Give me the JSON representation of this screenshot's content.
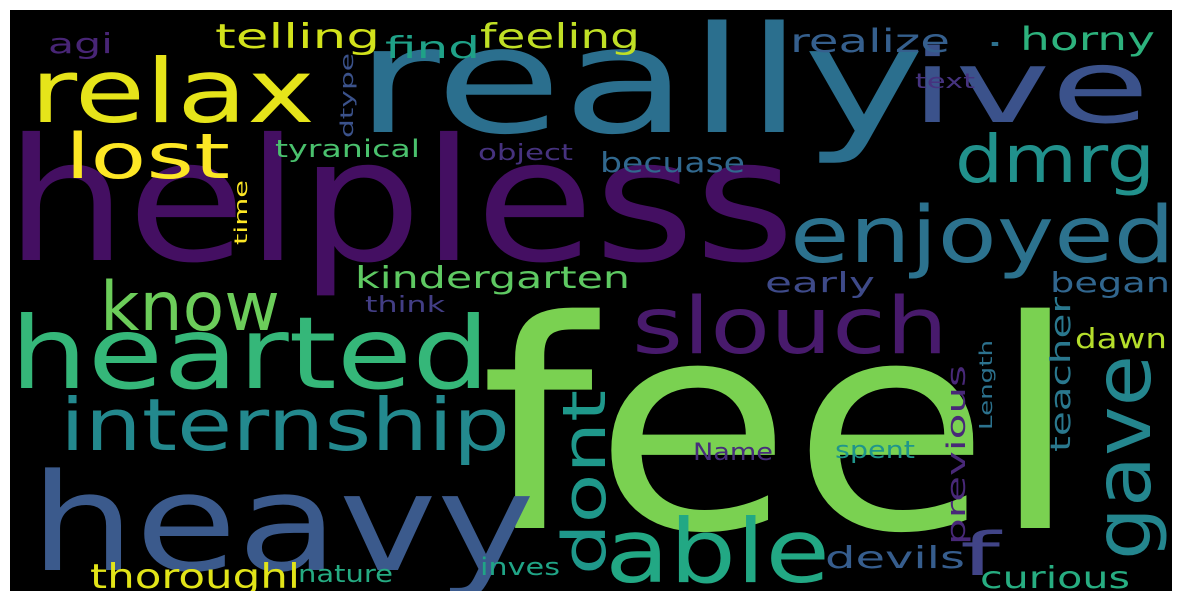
{
  "words": [
    {
      "text": "feel",
      "color": "#7ad151"
    },
    {
      "text": "helpless",
      "color": "#440f62"
    },
    {
      "text": "really",
      "color": "#2b6f8e"
    },
    {
      "text": "heavy",
      "color": "#3b5a8c"
    },
    {
      "text": "hearted",
      "color": "#35b779"
    },
    {
      "text": "relax",
      "color": "#e6e41a"
    },
    {
      "text": "ive",
      "color": "#3b528b"
    },
    {
      "text": "enjoyed",
      "color": "#2c728e"
    },
    {
      "text": "internship",
      "color": "#23898e"
    },
    {
      "text": "able",
      "color": "#22a884"
    },
    {
      "text": "slouch",
      "color": "#481a6c"
    },
    {
      "text": "gave",
      "color": "#24868e"
    },
    {
      "text": "lost",
      "color": "#fde725"
    },
    {
      "text": "know",
      "color": "#6ccd5a"
    },
    {
      "text": "dmrg",
      "color": "#21918c"
    },
    {
      "text": "dont",
      "color": "#1f988b"
    },
    {
      "text": "f",
      "color": "#414487"
    },
    {
      "text": "kindergarten",
      "color": "#5ec962"
    },
    {
      "text": "telling",
      "color": "#d2e21b"
    },
    {
      "text": "feeling",
      "color": "#c0df25"
    },
    {
      "text": "thoroughl",
      "color": "#e2e418"
    },
    {
      "text": "horny",
      "color": "#2db27d"
    },
    {
      "text": "realize",
      "color": "#355f8d"
    },
    {
      "text": "find",
      "color": "#1fa187"
    },
    {
      "text": "becuase",
      "color": "#31688e"
    },
    {
      "text": "early",
      "color": "#3e4a89"
    },
    {
      "text": "began",
      "color": "#31668e"
    },
    {
      "text": "devils",
      "color": "#365d8d"
    },
    {
      "text": "curious",
      "color": "#27ad81"
    },
    {
      "text": "dawn",
      "color": "#b5de2b"
    },
    {
      "text": "teacher",
      "color": "#2a788e"
    },
    {
      "text": "previous",
      "color": "#482878"
    },
    {
      "text": "tyranical",
      "color": "#4ac16d"
    },
    {
      "text": "object",
      "color": "#46327e"
    },
    {
      "text": "agi",
      "color": "#482576"
    },
    {
      "text": "dtype",
      "color": "#3b528b"
    },
    {
      "text": "text",
      "color": "#46337f"
    },
    {
      "text": "time",
      "color": "#fde725"
    },
    {
      "text": "think",
      "color": "#433e85"
    },
    {
      "text": "nature",
      "color": "#25ab82"
    },
    {
      "text": "inves",
      "color": "#20a486"
    },
    {
      "text": "Name",
      "color": "#472d7b"
    },
    {
      "text": "spent",
      "color": "#1f958b"
    },
    {
      "text": "Length",
      "color": "#2c728e"
    },
    {
      "text": "·",
      "color": "#2d718e"
    }
  ]
}
